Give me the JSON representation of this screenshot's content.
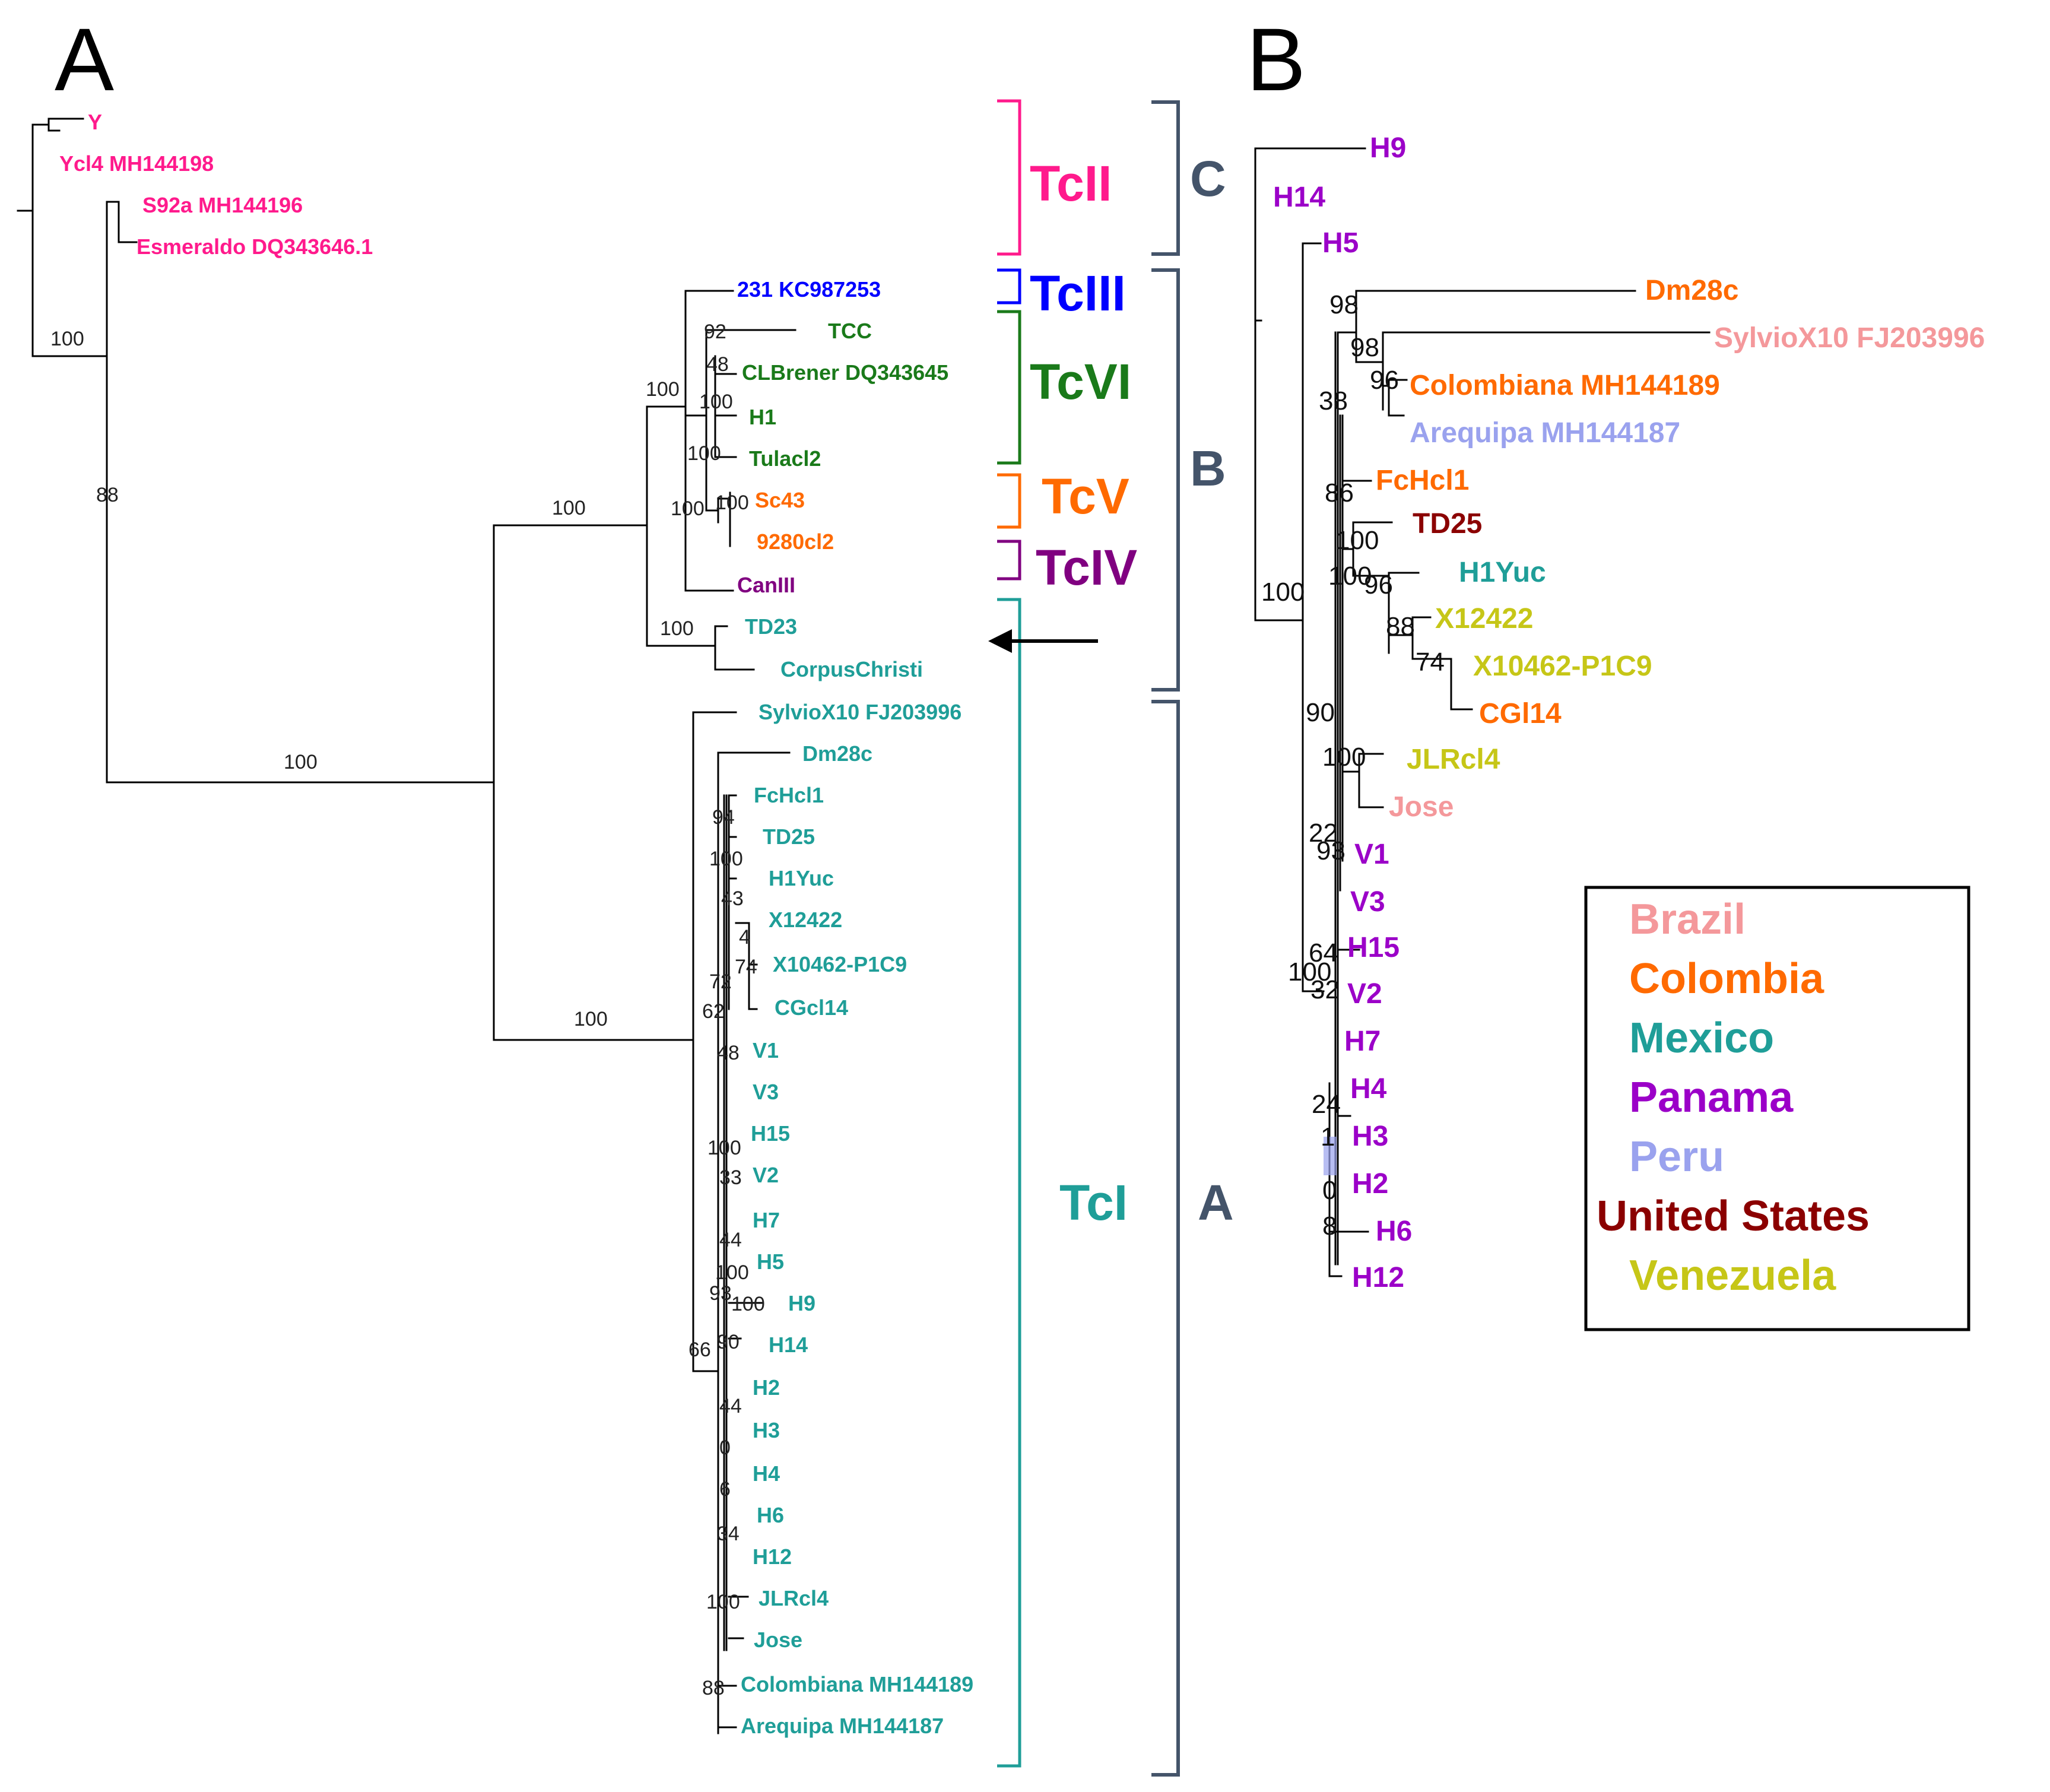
{
  "panels": {
    "a": "A",
    "b": "B"
  },
  "colors": {
    "tcII": "#ff1a8c",
    "tcIII": "#0000ff",
    "tcVI": "#1a7a1a",
    "tcV": "#ff6a00",
    "tcIV": "#800080",
    "tcI": "#1f9e98",
    "brazil": "#f4989b",
    "colombia": "#ff6a00",
    "mexico": "#1f9e98",
    "panama": "#9b00c8",
    "peru": "#9aa2ee",
    "united_states": "#8b0000",
    "venezuela": "#c6c617",
    "group": "#44546a"
  },
  "tree_a": {
    "taxa": [
      "Y",
      "Ycl4 MH144198",
      "S92a MH144196",
      "Esmeraldo DQ343646.1",
      "231 KC987253",
      "TCC",
      "CLBrener DQ343645",
      "H1",
      "Tulacl2",
      "Sc43",
      "9280cl2",
      "CanIII",
      "TD23",
      "CorpusChristi",
      "SylvioX10 FJ203996",
      "Dm28c",
      "FcHcl1",
      "TD25",
      "H1Yuc",
      "X12422",
      "X10462-P1C9",
      "CGcl14",
      "V1",
      "V3",
      "H15",
      "V2",
      "H7",
      "H5",
      "H9",
      "H14",
      "H2",
      "H3",
      "H4",
      "H6",
      "H12",
      "JLRcl4",
      "Jose",
      "Colombiana MH144189",
      "Arequipa MH144187"
    ],
    "support": [
      "100",
      "88",
      "100",
      "100",
      "100",
      "100",
      "92",
      "48",
      "100",
      "100",
      "100",
      "100",
      "100",
      "94",
      "100",
      "43",
      "4",
      "74",
      "72",
      "62",
      "48",
      "100",
      "33",
      "44",
      "100",
      "93",
      "100",
      "90",
      "66",
      "44",
      "0",
      "6",
      "34",
      "100",
      "88"
    ]
  },
  "tree_b": {
    "taxa": [
      "H9",
      "H14",
      "H5",
      "Dm28c",
      "SylvioX10 FJ203996",
      "Colombiana MH144189",
      "Arequipa MH144187",
      "FcHcl1",
      "TD25",
      "H1Yuc",
      "X12422",
      "X10462-P1C9",
      "CGl14",
      "JLRcl4",
      "Jose",
      "V1",
      "V3",
      "H15",
      "V2",
      "H7",
      "H4",
      "H3",
      "H2",
      "H6",
      "H12"
    ],
    "support": [
      "98",
      "98",
      "96",
      "38",
      "86",
      "100",
      "100",
      "96",
      "88",
      "74",
      "90",
      "100",
      "22",
      "93",
      "100",
      "64",
      "100",
      "32",
      "24",
      "1",
      "0",
      "8"
    ]
  },
  "clades": [
    "TcII",
    "TcIII",
    "TcVI",
    "TcV",
    "TcIV",
    "TcI"
  ],
  "groups": [
    "C",
    "B",
    "A"
  ],
  "legend": {
    "items": [
      "Brazil",
      "Colombia",
      "Mexico",
      "Panama",
      "Peru",
      "United States",
      "Venezuela"
    ]
  }
}
